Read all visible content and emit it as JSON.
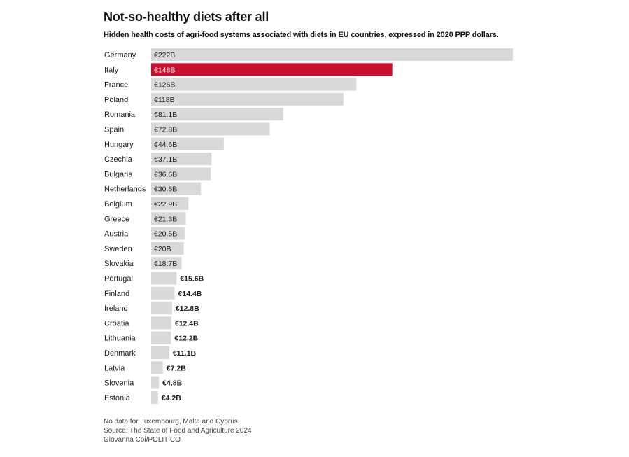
{
  "header": {
    "title": "Not-so-healthy diets after all",
    "subtitle": "Hidden health costs of agri-food systems associated with diets in EU countries, expressed in 2020 PPP dollars."
  },
  "chart_data": {
    "type": "bar",
    "orientation": "horizontal",
    "title": "Not-so-healthy diets after all",
    "subtitle": "Hidden health costs of agri-food systems associated with diets in EU countries, expressed in 2020 PPP dollars.",
    "xlabel": "",
    "ylabel": "",
    "unit": "€ billions",
    "xlim": [
      0,
      222
    ],
    "highlight": "Italy",
    "categories": [
      "Germany",
      "Italy",
      "France",
      "Poland",
      "Romania",
      "Spain",
      "Hungary",
      "Czechia",
      "Bulgaria",
      "Netherlands",
      "Belgium",
      "Greece",
      "Austria",
      "Sweden",
      "Slovakia",
      "Portugal",
      "Finland",
      "Ireland",
      "Croatia",
      "Lithuania",
      "Denmark",
      "Latvia",
      "Slovenia",
      "Estonia"
    ],
    "values": [
      222,
      148,
      126,
      118,
      81.1,
      72.8,
      44.6,
      37.1,
      36.6,
      30.6,
      22.9,
      21.3,
      20.5,
      20,
      18.7,
      15.6,
      14.4,
      12.8,
      12.4,
      12.2,
      11.1,
      7.2,
      4.8,
      4.2
    ],
    "labels": [
      "€222B",
      "€148B",
      "€126B",
      "€118B",
      "€81.1B",
      "€72.8B",
      "€44.6B",
      "€37.1B",
      "€36.6B",
      "€30.6B",
      "€22.9B",
      "€21.3B",
      "€20.5B",
      "€20B",
      "€18.7B",
      "€15.6B",
      "€14.4B",
      "€12.8B",
      "€12.4B",
      "€12.2B",
      "€11.1B",
      "€7.2B",
      "€4.8B",
      "€4.2B"
    ]
  },
  "colors": {
    "bar": "#d9d9d9",
    "highlight": "#c8102e",
    "label": "#1a1a1a",
    "highlight_label": "#ffffff"
  },
  "footer": {
    "note": "No data for Luxembourg, Malta and Cyprus.",
    "source": "Source: The State of Food and Agriculture 2024",
    "credit": "Giovanna Coi/POLITICO"
  }
}
